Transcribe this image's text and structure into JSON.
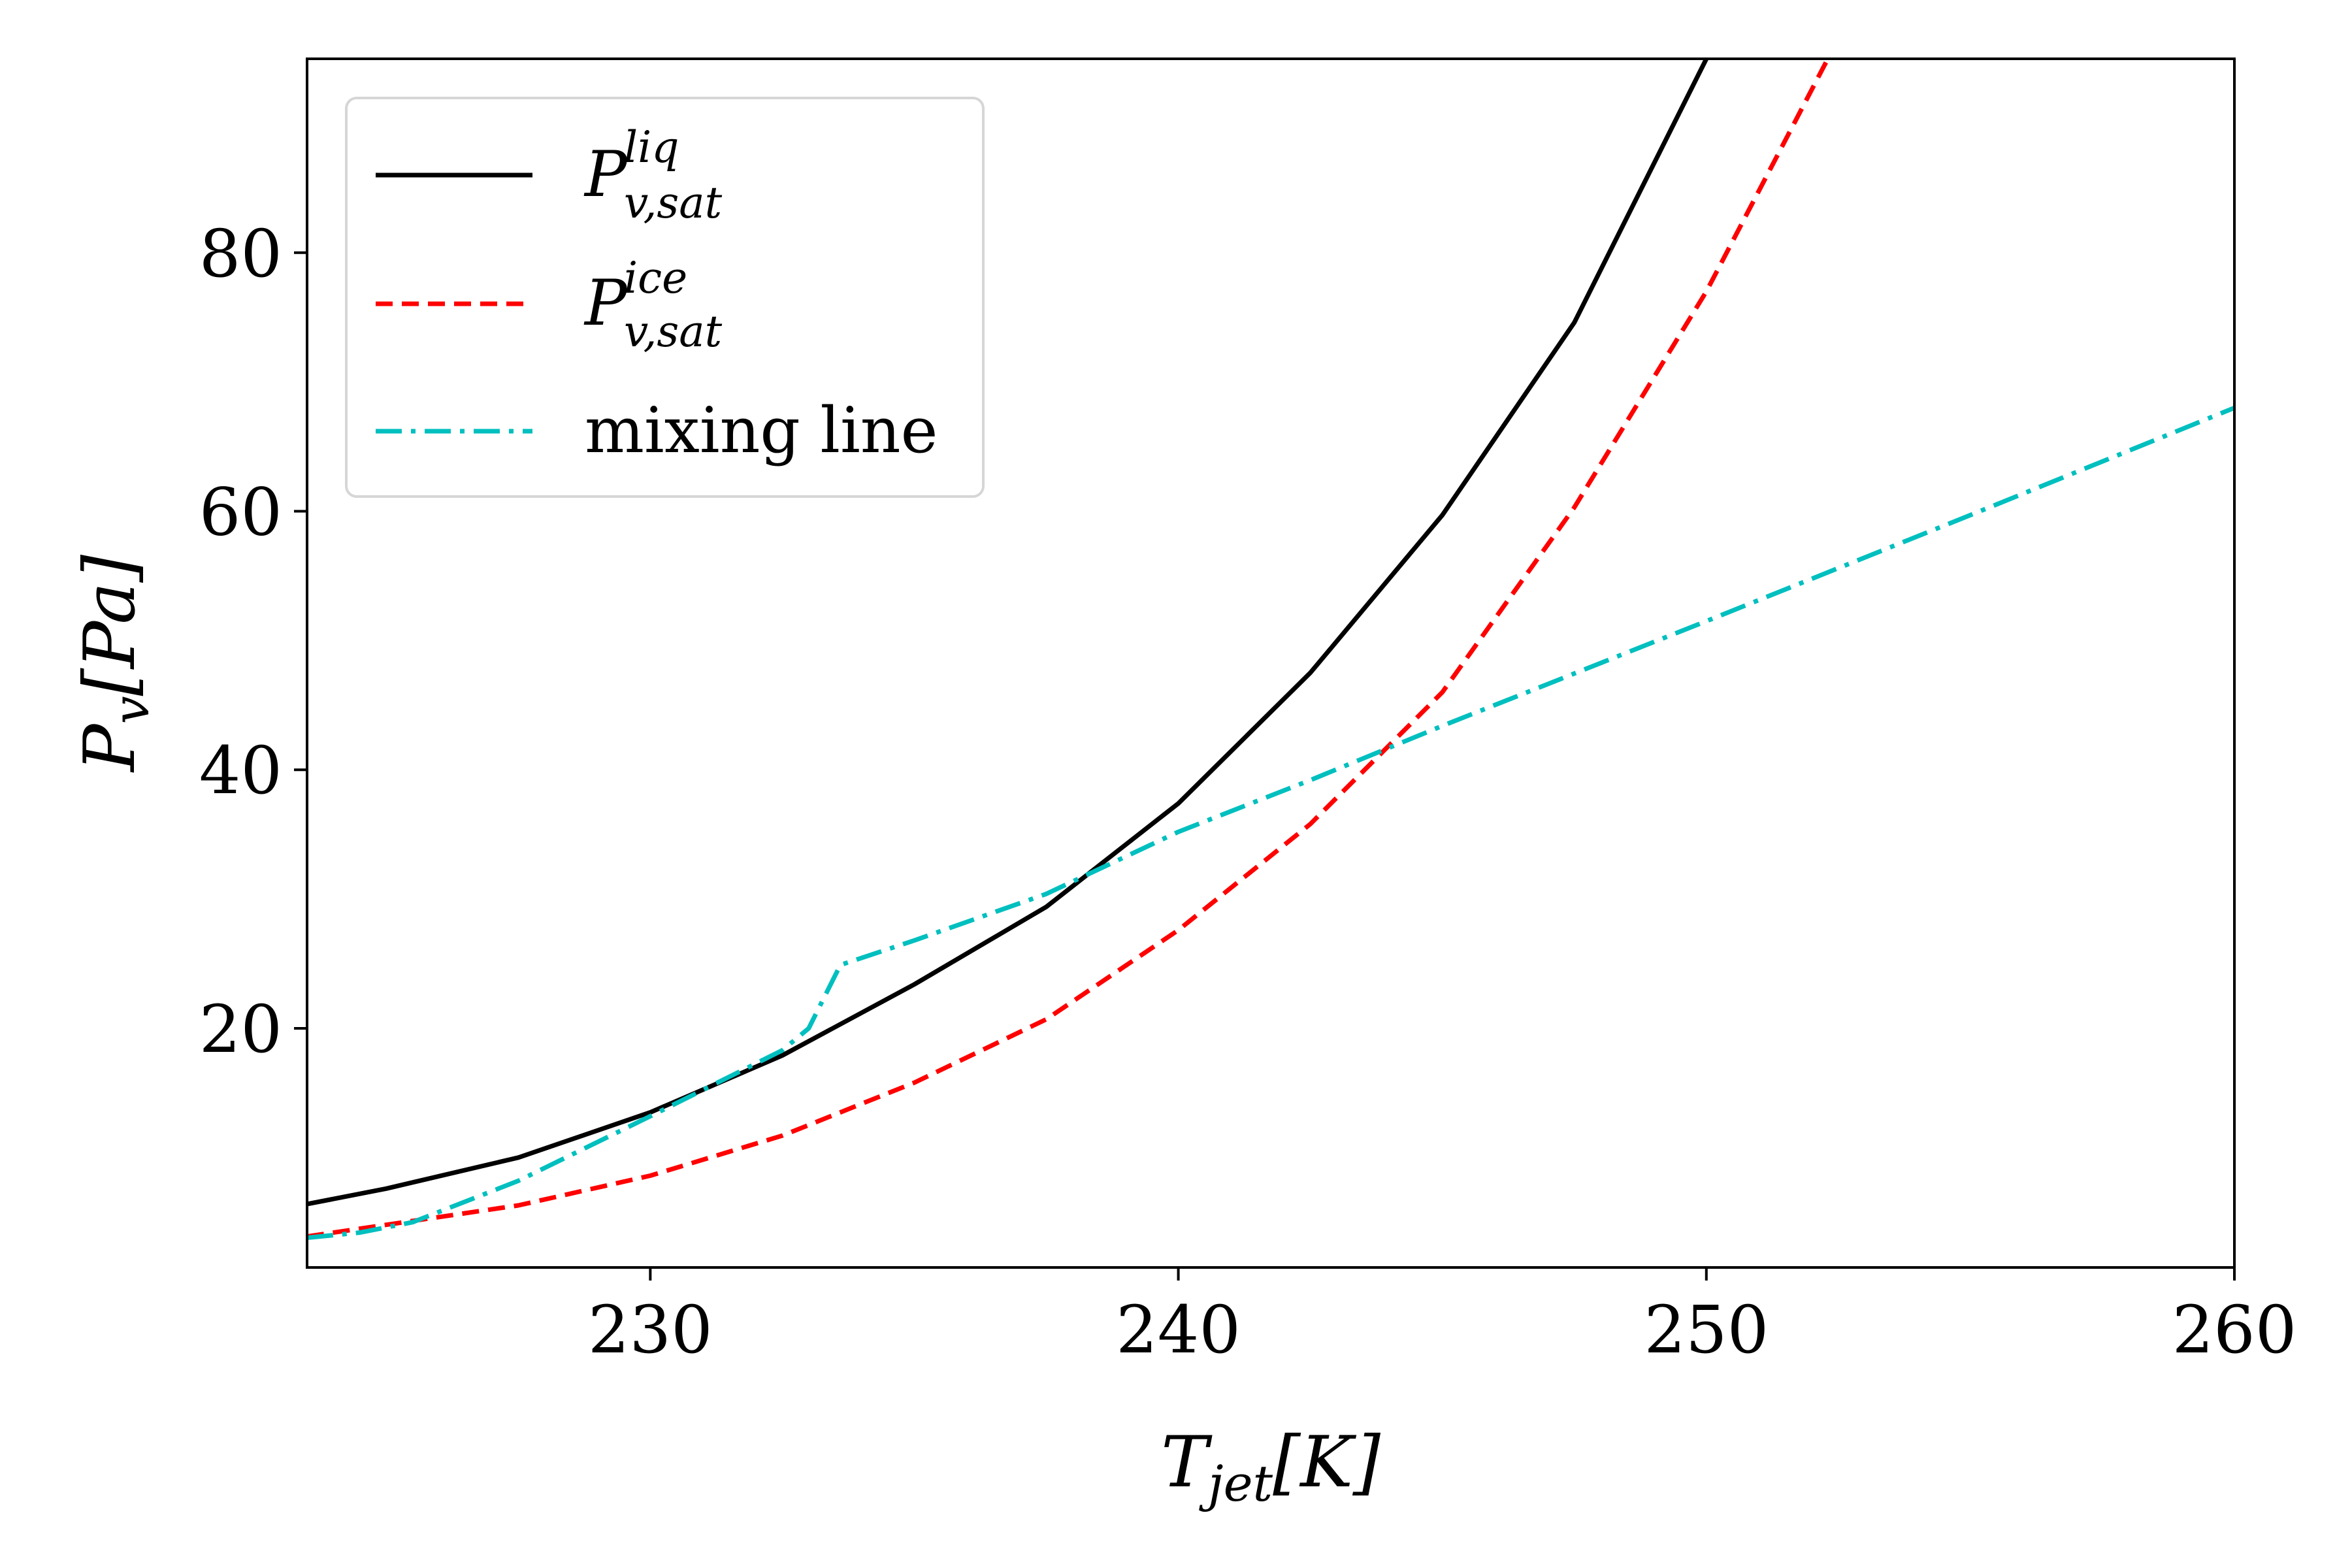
{
  "chart_data": {
    "type": "line",
    "xlabel": {
      "main": "T",
      "sub": "jet",
      "tail": "[K]"
    },
    "ylabel": {
      "main": "P",
      "sub": "v",
      "tail": "[Pa]"
    },
    "xlim": [
      223.5,
      260
    ],
    "ylim": [
      1.5,
      95
    ],
    "xticks": [
      230,
      240,
      250,
      260
    ],
    "yticks": [
      20,
      40,
      60,
      80
    ],
    "grid": false,
    "legend_position": "upper-left",
    "series": [
      {
        "name": {
          "main": "P",
          "sup": "liq",
          "sub": "v,sat"
        },
        "color": "#000000",
        "style": "solid",
        "x": [
          223.5,
          225,
          227.5,
          230,
          232.5,
          235,
          237.5,
          240,
          242.5,
          245,
          247.5,
          250
        ],
        "y": [
          6.4,
          7.6,
          10.0,
          13.5,
          17.9,
          23.4,
          29.4,
          37.4,
          47.5,
          59.7,
          74.6,
          95.0
        ]
      },
      {
        "name": {
          "main": "P",
          "sup": "ice",
          "sub": "v,sat"
        },
        "color": "#ff0000",
        "style": "dashed",
        "x": [
          223.5,
          225,
          227.5,
          230,
          232.5,
          235,
          237.5,
          240,
          242.5,
          245,
          247.5,
          250,
          252.3
        ],
        "y": [
          3.9,
          4.8,
          6.3,
          8.6,
          11.7,
          15.8,
          20.7,
          27.6,
          35.8,
          46.0,
          60.3,
          77.0,
          95.0
        ]
      },
      {
        "name": {
          "main": "mixing line"
        },
        "color": "#00bfbf",
        "style": "dashdot",
        "x": [
          223.5,
          224.5,
          225.5,
          227.5,
          230,
          232.5,
          233.0,
          233.6,
          235,
          237.5,
          240,
          242.5,
          245,
          250,
          255,
          260
        ],
        "y": [
          3.8,
          4.2,
          5.0,
          8.2,
          13.2,
          18.3,
          20.0,
          24.9,
          26.8,
          30.4,
          35.2,
          39.2,
          43.4,
          51.5,
          59.7,
          68.0
        ]
      }
    ]
  }
}
